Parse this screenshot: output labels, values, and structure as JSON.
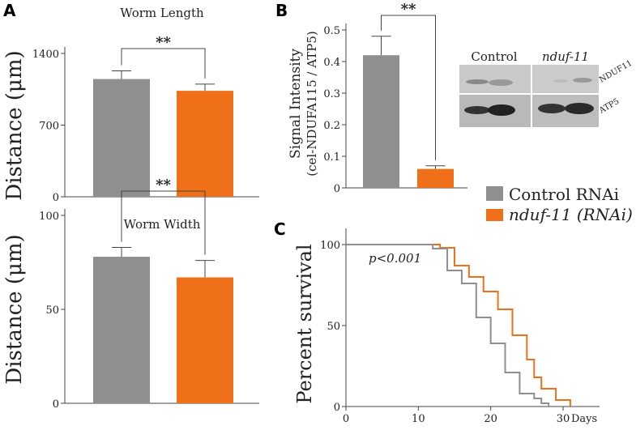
{
  "panel_labels": [
    "A",
    "B",
    "C"
  ],
  "colors": {
    "control": "#8f8f8f",
    "nduf": "#f07019",
    "axis": "#444444"
  },
  "legend": {
    "control": "Control RNAi",
    "nduf": "nduf-11 (RNAi)"
  },
  "blot": {
    "lanes": [
      "Control",
      "nduf-11"
    ],
    "bands": [
      "NDUF11",
      "ATP5"
    ]
  },
  "chart_data": [
    {
      "id": "length",
      "type": "bar",
      "title": "Worm Length",
      "ylabel": "Distance (μm)",
      "categories": [
        "Control RNAi",
        "nduf-11 (RNAi)"
      ],
      "values": [
        1150,
        1035
      ],
      "errors": [
        80,
        65
      ],
      "ylim": [
        0,
        1400
      ],
      "yticks": [
        "0",
        "700",
        "1400"
      ],
      "significance": "**"
    },
    {
      "id": "width",
      "type": "bar",
      "title": "Worm Width",
      "ylabel": "Distance (μm)",
      "categories": [
        "Control RNAi",
        "nduf-11 (RNAi)"
      ],
      "values": [
        78,
        67
      ],
      "errors": [
        5,
        9
      ],
      "ylim": [
        0,
        100
      ],
      "yticks": [
        "0",
        "50",
        "100"
      ],
      "significance": "**"
    },
    {
      "id": "signal",
      "type": "bar",
      "title": "",
      "ylabel": "Signal Intensity",
      "ylabel2": "(cel-NDUFA115 / ATP5)",
      "categories": [
        "Control RNAi",
        "nduf-11 (RNAi)"
      ],
      "values": [
        0.42,
        0.06
      ],
      "errors": [
        0.06,
        0.01
      ],
      "ylim": [
        0,
        0.5
      ],
      "yticks": [
        "0",
        "0.1",
        "0.2",
        "0.3",
        "0.4",
        "0.5"
      ],
      "significance": "**"
    },
    {
      "id": "survival",
      "type": "line",
      "ylabel": "Percent survival",
      "xlabel": "Days",
      "xlim": [
        0,
        35
      ],
      "ylim": [
        0,
        100
      ],
      "xticks": [
        "0",
        "10",
        "20",
        "30"
      ],
      "yticks": [
        "0",
        "50",
        "100"
      ],
      "annotation": "p<0.001",
      "series": [
        {
          "name": "Control RNAi",
          "x": [
            0,
            12,
            14,
            16,
            18,
            20,
            22,
            24,
            26,
            27,
            28
          ],
          "y": [
            100,
            97.5,
            84,
            76,
            55,
            39,
            21,
            8,
            5,
            2,
            0
          ]
        },
        {
          "name": "nduf-11 (RNAi)",
          "x": [
            0,
            13,
            15,
            17,
            19,
            21,
            23,
            25,
            26,
            27,
            29,
            31
          ],
          "y": [
            100,
            98,
            87,
            80,
            71,
            60,
            44,
            29,
            18,
            11,
            4,
            0
          ]
        }
      ]
    }
  ]
}
